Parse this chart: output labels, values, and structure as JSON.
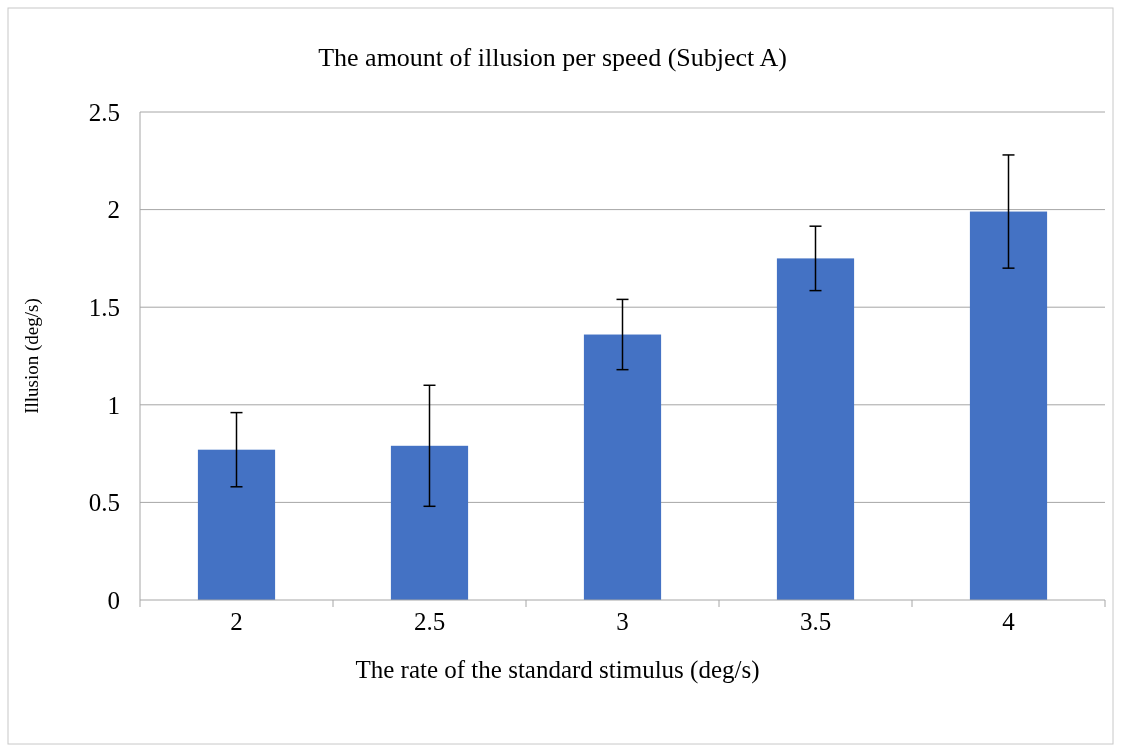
{
  "chart_data": {
    "type": "bar",
    "title": "The amount of illusion per speed (Subject A)",
    "xlabel": "The rate of the standard stimulus (deg/s)",
    "ylabel": "Illusion (deg/s)",
    "categories": [
      "2",
      "2.5",
      "3",
      "3.5",
      "4"
    ],
    "values": [
      0.77,
      0.79,
      1.36,
      1.75,
      1.99
    ],
    "errors": [
      0.19,
      0.31,
      0.18,
      0.165,
      0.29
    ],
    "color": "#4472c4",
    "ylim": [
      0,
      2.5
    ],
    "yticks": [
      0,
      0.5,
      1,
      1.5,
      2,
      2.5
    ],
    "grid": "y"
  }
}
